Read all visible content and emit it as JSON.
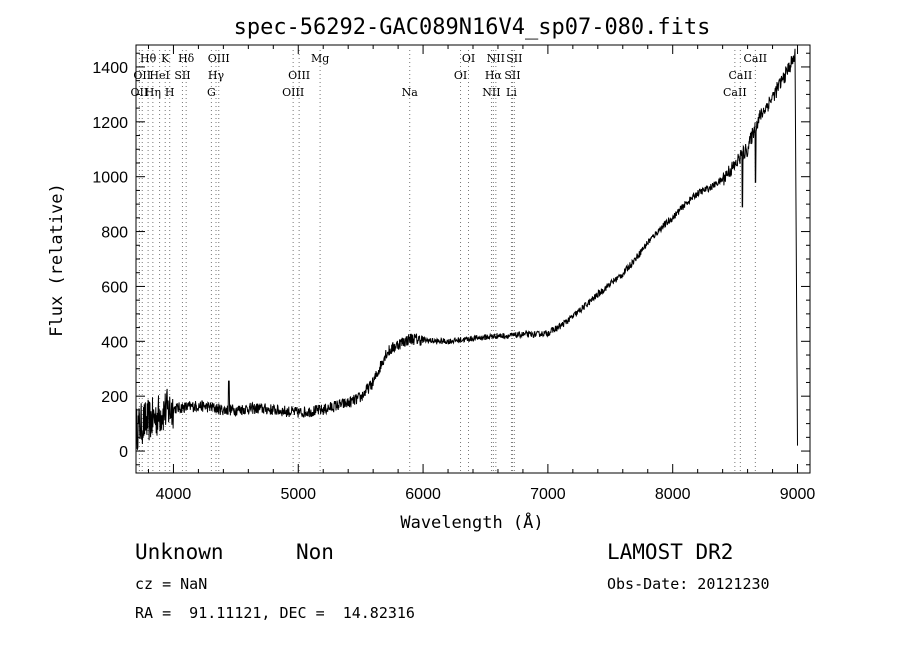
{
  "chart_data": {
    "type": "line",
    "title": "spec-56292-GAC089N16V4_sp07-080.fits",
    "xlabel": "Wavelength (Å)",
    "ylabel": "Flux (relative)",
    "xlim": [
      3700,
      9100
    ],
    "ylim": [
      -80,
      1480
    ],
    "x_ticks": [
      4000,
      5000,
      6000,
      7000,
      8000,
      9000
    ],
    "y_ticks": [
      0,
      200,
      400,
      600,
      800,
      1000,
      1200,
      1400
    ],
    "series": [
      {
        "name": "flux",
        "x": [
          3700,
          3750,
          3800,
          3850,
          3900,
          3950,
          4000,
          4100,
          4200,
          4300,
          4400,
          4500,
          4600,
          4700,
          4800,
          4900,
          5000,
          5100,
          5200,
          5300,
          5400,
          5500,
          5600,
          5650,
          5700,
          5800,
          5900,
          6000,
          6100,
          6200,
          6300,
          6400,
          6500,
          6600,
          6700,
          6800,
          6900,
          7000,
          7100,
          7200,
          7300,
          7400,
          7500,
          7600,
          7700,
          7800,
          7900,
          8000,
          8100,
          8200,
          8300,
          8400,
          8450,
          8500,
          8550,
          8600,
          8650,
          8700,
          8800,
          8900,
          8980,
          9000
        ],
        "y": [
          80,
          100,
          110,
          120,
          140,
          150,
          155,
          160,
          165,
          160,
          150,
          150,
          155,
          155,
          150,
          145,
          140,
          145,
          150,
          165,
          175,
          195,
          250,
          300,
          355,
          390,
          410,
          405,
          400,
          400,
          405,
          410,
          415,
          420,
          420,
          425,
          425,
          430,
          455,
          490,
          530,
          570,
          610,
          645,
          700,
          760,
          810,
          850,
          900,
          940,
          960,
          990,
          1020,
          1040,
          1080,
          1100,
          1170,
          1220,
          1290,
          1370,
          1440,
          20
        ]
      }
    ],
    "line_markers": [
      {
        "wavelength": 3727,
        "label": "OII",
        "row": 2
      },
      {
        "wavelength": 3750,
        "label": "OII",
        "row": 1
      },
      {
        "wavelength": 3797,
        "label": "Hθ",
        "row": 0
      },
      {
        "wavelength": 3835,
        "label": "Hη",
        "row": 2
      },
      {
        "wavelength": 3889,
        "label": "HeI",
        "row": 1
      },
      {
        "wavelength": 3934,
        "label": "K",
        "row": 0
      },
      {
        "wavelength": 3970,
        "label": "H",
        "row": 2
      },
      {
        "wavelength": 4072,
        "label": "SII",
        "row": 1
      },
      {
        "wavelength": 4102,
        "label": "Hδ",
        "row": 0
      },
      {
        "wavelength": 4304,
        "label": "G",
        "row": 2
      },
      {
        "wavelength": 4341,
        "label": "Hγ",
        "row": 1
      },
      {
        "wavelength": 4363,
        "label": "OIII",
        "row": 0
      },
      {
        "wavelength": 4959,
        "label": "OIII",
        "row": 2
      },
      {
        "wavelength": 5007,
        "label": "OIII",
        "row": 1
      },
      {
        "wavelength": 5175,
        "label": "Mg",
        "row": 0
      },
      {
        "wavelength": 5893,
        "label": "Na",
        "row": 2
      },
      {
        "wavelength": 6300,
        "label": "OI",
        "row": 1
      },
      {
        "wavelength": 6364,
        "label": "OI",
        "row": 0
      },
      {
        "wavelength": 6548,
        "label": "NII",
        "row": 2
      },
      {
        "wavelength": 6563,
        "label": "Hα",
        "row": 1
      },
      {
        "wavelength": 6583,
        "label": "NII",
        "row": 0
      },
      {
        "wavelength": 6708,
        "label": "Li",
        "row": 2
      },
      {
        "wavelength": 6716,
        "label": "SII",
        "row": 1
      },
      {
        "wavelength": 6731,
        "label": "SII",
        "row": 0
      },
      {
        "wavelength": 8498,
        "label": "CaII",
        "row": 2
      },
      {
        "wavelength": 8542,
        "label": "CaII",
        "row": 1
      },
      {
        "wavelength": 8662,
        "label": "CaII",
        "row": 0
      }
    ]
  },
  "info": {
    "classification": "Unknown",
    "subclass": "Non",
    "cz": "cz = NaN",
    "coords": "RA =  91.11121, DEC =  14.82316",
    "survey": "LAMOST DR2",
    "obs_date": "Obs-Date: 20121230"
  }
}
